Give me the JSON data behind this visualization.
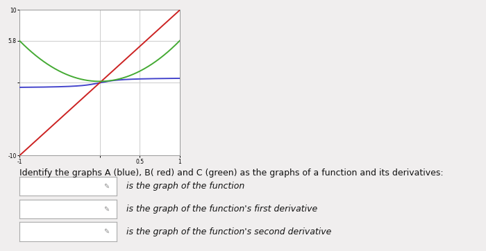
{
  "xlim": [
    -1,
    1
  ],
  "ylim": [
    -10,
    10
  ],
  "blue_color": "#4444cc",
  "red_color": "#cc2222",
  "green_color": "#44aa33",
  "grid_color": "#cccccc",
  "plot_bg": "#ffffff",
  "outer_bg": "#f0eeee",
  "line1_label": "is the graph of the function",
  "line2_label": "is the graph of the function's first derivative",
  "line3_label": "is the graph of the function's second derivative",
  "identify_text": "Identify the graphs A (blue), B( red) and C (green) as the graphs of a function and its derivatives:",
  "blue_scale": 0.45,
  "blue_k": 5.0,
  "red_slope": 10.0,
  "green_scale": 4.5,
  "green_k": 5.0,
  "ytick_vals": [
    -10,
    0,
    5.8,
    10
  ],
  "ytick_labels": [
    "-10",
    "",
    "5.8",
    "10"
  ],
  "xtick_vals": [
    -1,
    0,
    0.5,
    1
  ],
  "xtick_labels": [
    "-1",
    "",
    "0.5",
    "1"
  ]
}
